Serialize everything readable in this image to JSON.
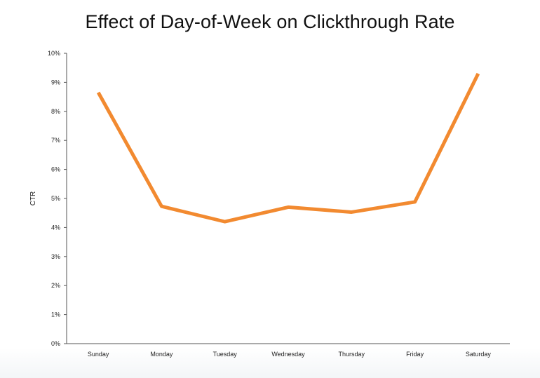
{
  "chart_data": {
    "type": "line",
    "title": "Effect of Day-of-Week on Clickthrough Rate",
    "xlabel": "",
    "ylabel": "CTR",
    "categories": [
      "Sunday",
      "Monday",
      "Tuesday",
      "Wednesday",
      "Thursday",
      "Friday",
      "Saturday"
    ],
    "series": [
      {
        "values": [
          8.65,
          4.73,
          4.2,
          4.7,
          4.53,
          4.88,
          9.3
        ],
        "color": "#f28a30"
      }
    ],
    "ylim": [
      0,
      10
    ],
    "yticks": [
      0,
      1,
      2,
      3,
      4,
      5,
      6,
      7,
      8,
      9,
      10
    ],
    "ytick_labels": [
      "0%",
      "1%",
      "2%",
      "3%",
      "4%",
      "5%",
      "6%",
      "7%",
      "8%",
      "9%",
      "10%"
    ],
    "grid": false,
    "legend": "none"
  }
}
